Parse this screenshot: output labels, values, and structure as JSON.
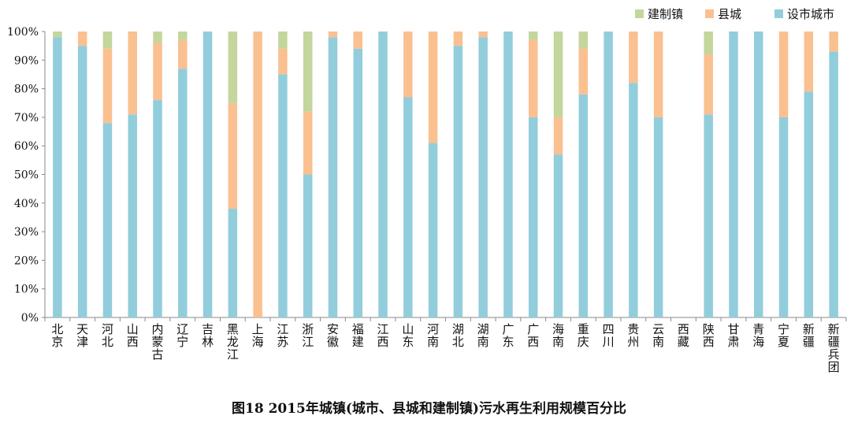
{
  "caption": "图18  2015年城镇(城市、县城和建制镇)污水再生利用规模百分比",
  "chart_data": {
    "type": "bar",
    "stacked": true,
    "percent": true,
    "ylim": [
      0,
      100
    ],
    "yticks": [
      "0%",
      "10%",
      "20%",
      "30%",
      "40%",
      "50%",
      "60%",
      "70%",
      "80%",
      "90%",
      "100%"
    ],
    "legend_position": "top-right",
    "categories": [
      "北京",
      "天津",
      "河北",
      "山西",
      "内蒙古",
      "辽宁",
      "吉林",
      "黑龙江",
      "上海",
      "江苏",
      "浙江",
      "安徽",
      "福建",
      "江西",
      "山东",
      "河南",
      "湖北",
      "湖南",
      "广东",
      "广西",
      "海南",
      "重庆",
      "四川",
      "贵州",
      "云南",
      "西藏",
      "陕西",
      "甘肃",
      "青海",
      "宁夏",
      "新疆",
      "新疆兵团"
    ],
    "series": [
      {
        "name": "设市城市",
        "color": "#92cddc",
        "values": [
          98,
          95,
          68,
          71,
          76,
          87,
          100,
          38,
          0,
          85,
          50,
          98,
          94,
          100,
          77,
          61,
          95,
          98,
          100,
          70,
          57,
          78,
          100,
          82,
          70,
          0,
          71,
          100,
          100,
          70,
          79,
          93
        ]
      },
      {
        "name": "县城",
        "color": "#fac090",
        "values": [
          0,
          5,
          26,
          29,
          20,
          10,
          0,
          37,
          100,
          9,
          22,
          2,
          6,
          0,
          23,
          39,
          5,
          2,
          0,
          27,
          13,
          16,
          0,
          18,
          30,
          0,
          21,
          0,
          0,
          30,
          21,
          7
        ]
      },
      {
        "name": "建制镇",
        "color": "#c3d69b",
        "values": [
          2,
          0,
          6,
          0,
          4,
          3,
          0,
          25,
          0,
          6,
          28,
          0,
          0,
          0,
          0,
          0,
          0,
          0,
          0,
          3,
          30,
          6,
          0,
          0,
          0,
          0,
          8,
          0,
          0,
          0,
          0,
          0
        ]
      }
    ],
    "legend_order": [
      "建制镇",
      "县城",
      "设市城市"
    ]
  }
}
